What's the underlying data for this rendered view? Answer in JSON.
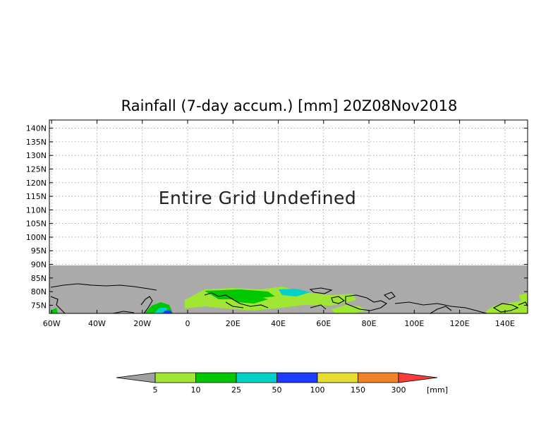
{
  "title": "Rainfall (7-day accum.) [mm] 20Z08Nov2018",
  "message": "Entire Grid Undefined",
  "lat_labels": [
    "140N",
    "135N",
    "130N",
    "125N",
    "120N",
    "115N",
    "110N",
    "105N",
    "100N",
    "95N",
    "90N",
    "85N",
    "80N",
    "75N"
  ],
  "lon_labels": [
    "60W",
    "40W",
    "20W",
    "0",
    "20E",
    "40E",
    "60E",
    "80E",
    "100E",
    "120E",
    "140E"
  ],
  "colorbar": {
    "labels": [
      "5",
      "10",
      "25",
      "50",
      "100",
      "150",
      "300"
    ],
    "unit": "[mm]",
    "under_color": "#a0a0a0",
    "colors": [
      "#a0e632",
      "#00c800",
      "#00d2c8",
      "#1e3cff",
      "#e6dc32",
      "#f08228"
    ],
    "over_color": "#fa3c3c"
  },
  "map": {
    "undefined_color": "#aaaaaa",
    "lat_range": [
      72,
      143
    ],
    "lon_range": [
      -61,
      150
    ],
    "data_band_lat": [
      72,
      90
    ]
  }
}
